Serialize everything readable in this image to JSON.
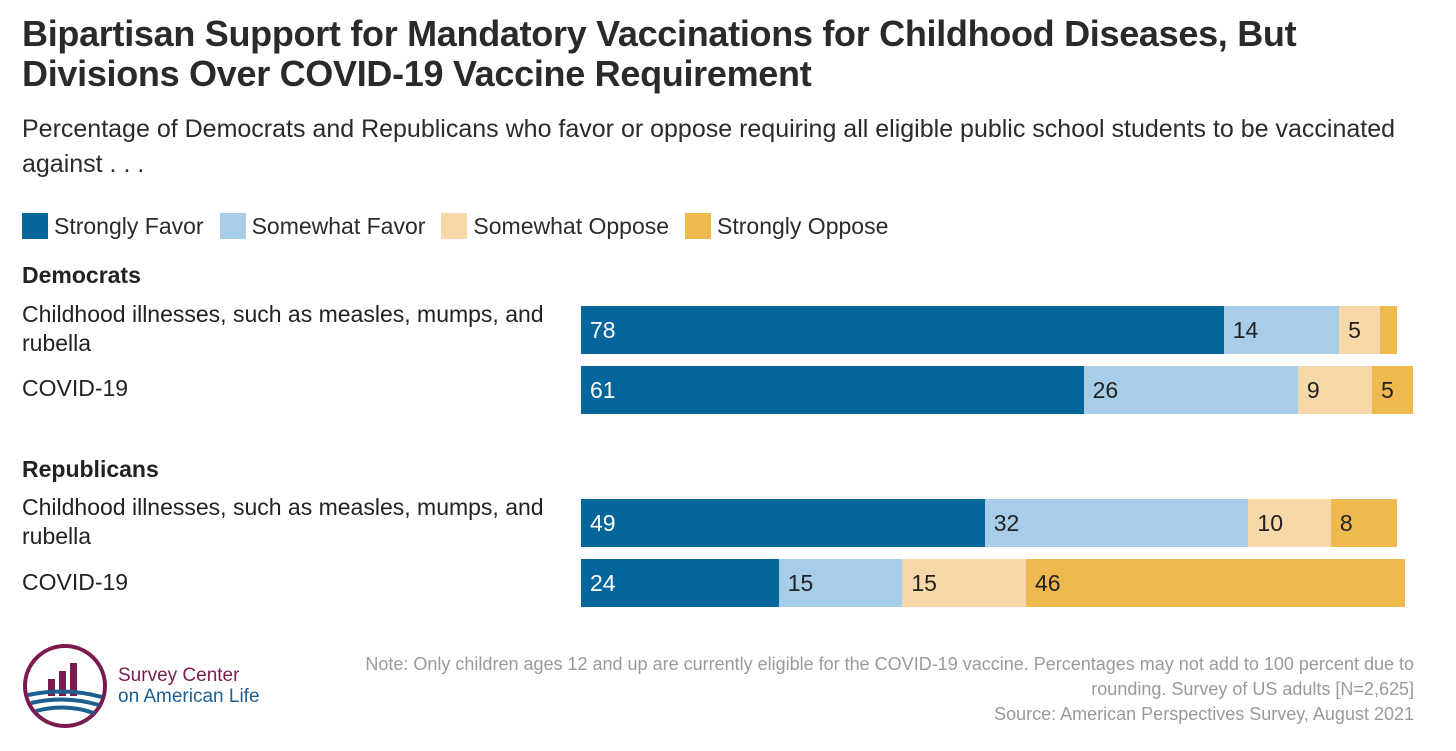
{
  "title": "Bipartisan Support for Mandatory Vaccinations for Childhood Diseases, But Divisions Over COVID-19 Vaccine Requirement",
  "subtitle": "Percentage of Democrats and Republicans who favor or oppose requiring all eligible public school students to be vaccinated against . . .",
  "colors": {
    "strongly_favor": "#04669a",
    "somewhat_favor": "#a7cde9",
    "somewhat_oppose": "#f7d8a8",
    "strongly_oppose": "#eeb94e"
  },
  "chart_data": {
    "type": "bar",
    "orientation": "horizontal",
    "stacked": true,
    "legend": {
      "placement": "top-left",
      "entries": [
        "Strongly Favor",
        "Somewhat Favor",
        "Somewhat Oppose",
        "Strongly Oppose"
      ]
    },
    "xlim": [
      0,
      100
    ],
    "grid": false,
    "groups": [
      {
        "name": "Democrats",
        "rows": [
          {
            "label": "Childhood illnesses, such as measles, mumps, and rubella",
            "values": [
              78,
              14,
              5,
              2
            ],
            "value_labels": [
              "78",
              "14",
              "5",
              ""
            ]
          },
          {
            "label": "COVID-19",
            "values": [
              61,
              26,
              9,
              5
            ],
            "value_labels": [
              "61",
              "26",
              "9",
              "5"
            ]
          }
        ]
      },
      {
        "name": "Republicans",
        "rows": [
          {
            "label": "Childhood illnesses, such as measles, mumps, and rubella",
            "values": [
              49,
              32,
              10,
              8
            ],
            "value_labels": [
              "49",
              "32",
              "10",
              "8"
            ]
          },
          {
            "label": "COVID-19",
            "values": [
              24,
              15,
              15,
              46
            ],
            "value_labels": [
              "24",
              "15",
              "15",
              "46"
            ]
          }
        ]
      }
    ]
  },
  "logo": {
    "line1": "Survey Center",
    "line2": "on American Life"
  },
  "note": {
    "line1": "Note: Only children ages 12 and up are currently eligible for the COVID-19 vaccine. Percentages may not add to 100 percent due to",
    "line2": "rounding. Survey of US adults [N=2,625]",
    "line3": "Source: American Perspectives Survey, August 2021"
  }
}
